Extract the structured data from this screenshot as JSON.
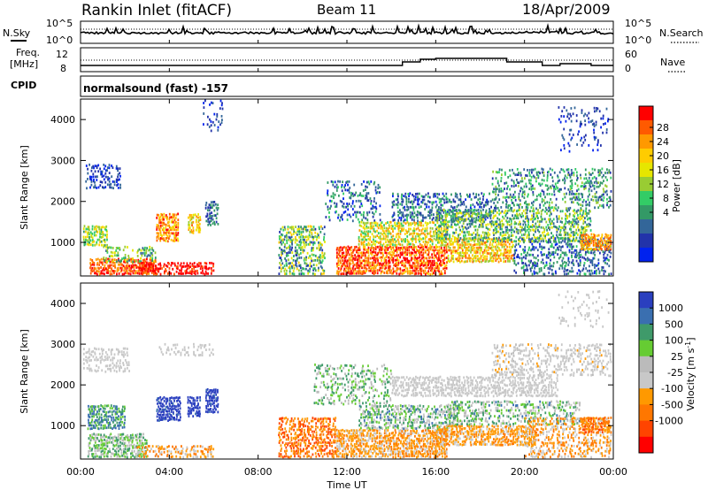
{
  "header": {
    "station": "Rankin Inlet (fitACF)",
    "beam": "Beam 11",
    "date": "18/Apr/2009"
  },
  "noise_panel": {
    "left_label": "N.Sky",
    "right_label": "N.Search",
    "left_ticks": [
      "10^5",
      "10^0"
    ],
    "right_ticks": [
      "10^5",
      "10^0"
    ]
  },
  "freq_panel": {
    "left_label_1": "Freq.",
    "left_label_2": "[MHz]",
    "left_ticks": [
      "12",
      "8"
    ],
    "right_label": "Nave",
    "right_ticks": [
      "60",
      "0"
    ]
  },
  "cpid": {
    "label": "CPID",
    "value": "normalsound (fast) -157"
  },
  "x_axis": {
    "title": "Time UT",
    "ticks": [
      "00:00",
      "04:00",
      "08:00",
      "12:00",
      "16:00",
      "20:00",
      "00:00"
    ]
  },
  "chart_data": [
    {
      "type": "heatmap",
      "title": "Power",
      "ylabel": "Slant Range [km]",
      "y_ticks": [
        1000,
        2000,
        3000,
        4000
      ],
      "ylim": [
        180,
        4500
      ],
      "xlabel": "Time UT",
      "xlim_hours": [
        0,
        24
      ],
      "colorbar": {
        "label": "Power [dB]",
        "ticks": [
          "28",
          "24",
          "20",
          "16",
          "12",
          "8",
          "4"
        ],
        "colors": [
          "#ff0000",
          "#ff5a00",
          "#ff9900",
          "#ffcc00",
          "#e6e600",
          "#99cc33",
          "#33cc66",
          "#339966",
          "#336699",
          "#2233aa",
          "#0022ee"
        ]
      }
    },
    {
      "type": "heatmap",
      "title": "Velocity",
      "ylabel": "Slant Range [km]",
      "y_ticks": [
        1000,
        2000,
        3000,
        4000
      ],
      "ylim": [
        180,
        4500
      ],
      "xlabel": "Time UT",
      "xlim_hours": [
        0,
        24
      ],
      "colorbar": {
        "label": "Velocity [m s^-1]",
        "ticks": [
          "1000",
          "500",
          "100",
          "25",
          "-25",
          "-100",
          "-500",
          "-1000"
        ],
        "colors": [
          "#2a3fbf",
          "#3a6fb0",
          "#3f9a6a",
          "#66cc33",
          "#bbbbbb",
          "#c8c8c8",
          "#ff9900",
          "#ff7700",
          "#ff4400",
          "#ff0000"
        ]
      }
    }
  ]
}
